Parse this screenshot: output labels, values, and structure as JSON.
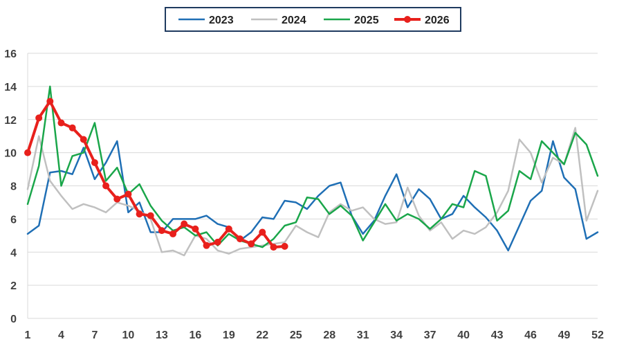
{
  "chart_data": {
    "type": "line",
    "title": "",
    "xlabel": "",
    "ylabel": "",
    "xlim": [
      1,
      52
    ],
    "ylim": [
      0,
      16
    ],
    "yticks": [
      0,
      2,
      4,
      6,
      8,
      10,
      12,
      14,
      16
    ],
    "xticks": [
      1,
      4,
      7,
      10,
      13,
      16,
      19,
      22,
      25,
      28,
      31,
      34,
      37,
      40,
      43,
      46,
      49,
      52
    ],
    "grid": "horizontal",
    "legend_position": "top-center",
    "series": [
      {
        "name": "2023",
        "color": "#1f6fb5",
        "markers": false,
        "x": [
          1,
          2,
          3,
          4,
          5,
          6,
          7,
          8,
          9,
          10,
          11,
          12,
          13,
          14,
          15,
          16,
          17,
          18,
          19,
          20,
          21,
          22,
          23,
          24,
          25,
          26,
          27,
          28,
          29,
          30,
          31,
          32,
          33,
          34,
          35,
          36,
          37,
          38,
          39,
          40,
          41,
          42,
          43,
          44,
          45,
          46,
          47,
          48,
          49,
          50,
          51,
          52
        ],
        "y": [
          5.1,
          5.6,
          8.8,
          8.9,
          8.7,
          10.3,
          8.4,
          9.4,
          10.7,
          6.4,
          7.0,
          5.2,
          5.2,
          6.0,
          6.0,
          6.0,
          6.2,
          5.7,
          5.5,
          4.7,
          5.2,
          6.1,
          6.0,
          7.1,
          7.0,
          6.6,
          7.4,
          8.0,
          8.2,
          6.2,
          5.1,
          5.9,
          7.4,
          8.7,
          6.7,
          7.8,
          7.2,
          6.0,
          6.3,
          7.4,
          6.7,
          6.1,
          5.3,
          4.1,
          5.6,
          7.1,
          7.7,
          10.7,
          8.5,
          7.8,
          4.8,
          5.2
        ]
      },
      {
        "name": "2024",
        "color": "#c0c0c0",
        "markers": false,
        "x": [
          1,
          2,
          3,
          4,
          5,
          6,
          7,
          8,
          9,
          10,
          11,
          12,
          13,
          14,
          15,
          16,
          17,
          18,
          19,
          20,
          21,
          22,
          23,
          24,
          25,
          26,
          27,
          28,
          29,
          30,
          31,
          32,
          33,
          34,
          35,
          36,
          37,
          38,
          39,
          40,
          41,
          42,
          43,
          44,
          45,
          46,
          47,
          48,
          49,
          50,
          51,
          52
        ],
        "y": [
          7.8,
          11.0,
          8.3,
          7.4,
          6.6,
          6.9,
          6.7,
          6.4,
          7.0,
          6.8,
          6.5,
          6.0,
          4.0,
          4.1,
          3.8,
          5.0,
          4.8,
          4.1,
          3.9,
          4.2,
          4.3,
          4.4,
          4.5,
          4.6,
          5.6,
          5.2,
          4.9,
          6.4,
          6.9,
          6.5,
          6.7,
          6.0,
          5.7,
          5.8,
          7.9,
          6.2,
          5.3,
          5.8,
          4.8,
          5.3,
          5.1,
          5.5,
          6.4,
          7.7,
          10.8,
          10.0,
          8.2,
          9.7,
          9.3,
          11.5,
          5.9,
          7.7
        ]
      },
      {
        "name": "2025",
        "color": "#1aa64a",
        "markers": false,
        "x": [
          1,
          2,
          3,
          4,
          5,
          6,
          7,
          8,
          9,
          10,
          11,
          12,
          13,
          14,
          15,
          16,
          17,
          18,
          19,
          20,
          21,
          22,
          23,
          24,
          25,
          26,
          27,
          28,
          29,
          30,
          31,
          32,
          33,
          34,
          35,
          36,
          37,
          38,
          39,
          40,
          41,
          42,
          43,
          44,
          45,
          46,
          47,
          48,
          49,
          50,
          51,
          52
        ],
        "y": [
          6.9,
          9.2,
          14.0,
          8.0,
          9.8,
          10.0,
          11.8,
          8.3,
          9.1,
          7.5,
          8.1,
          6.8,
          5.9,
          5.3,
          5.5,
          5.0,
          5.2,
          4.4,
          5.1,
          4.7,
          4.5,
          4.3,
          4.8,
          5.6,
          5.8,
          7.3,
          7.2,
          6.3,
          6.8,
          6.2,
          4.7,
          5.8,
          6.9,
          5.9,
          6.3,
          6.0,
          5.4,
          6.0,
          6.9,
          6.7,
          8.9,
          8.6,
          5.9,
          6.5,
          8.9,
          8.4,
          10.7,
          10.0,
          9.3,
          11.2,
          10.5,
          8.6
        ]
      },
      {
        "name": "2026",
        "color": "#e8201c",
        "markers": true,
        "x": [
          1,
          2,
          3,
          4,
          5,
          6,
          7,
          8,
          9,
          10,
          11,
          12,
          13,
          14,
          15,
          16,
          17,
          18,
          19,
          20,
          21,
          22,
          23,
          24
        ],
        "y": [
          10.0,
          12.1,
          13.1,
          11.8,
          11.5,
          10.8,
          9.4,
          8.0,
          7.2,
          7.5,
          6.3,
          6.2,
          5.3,
          5.1,
          5.7,
          5.4,
          4.4,
          4.6,
          5.4,
          4.8,
          4.5,
          5.2,
          4.3,
          4.35
        ]
      }
    ]
  }
}
